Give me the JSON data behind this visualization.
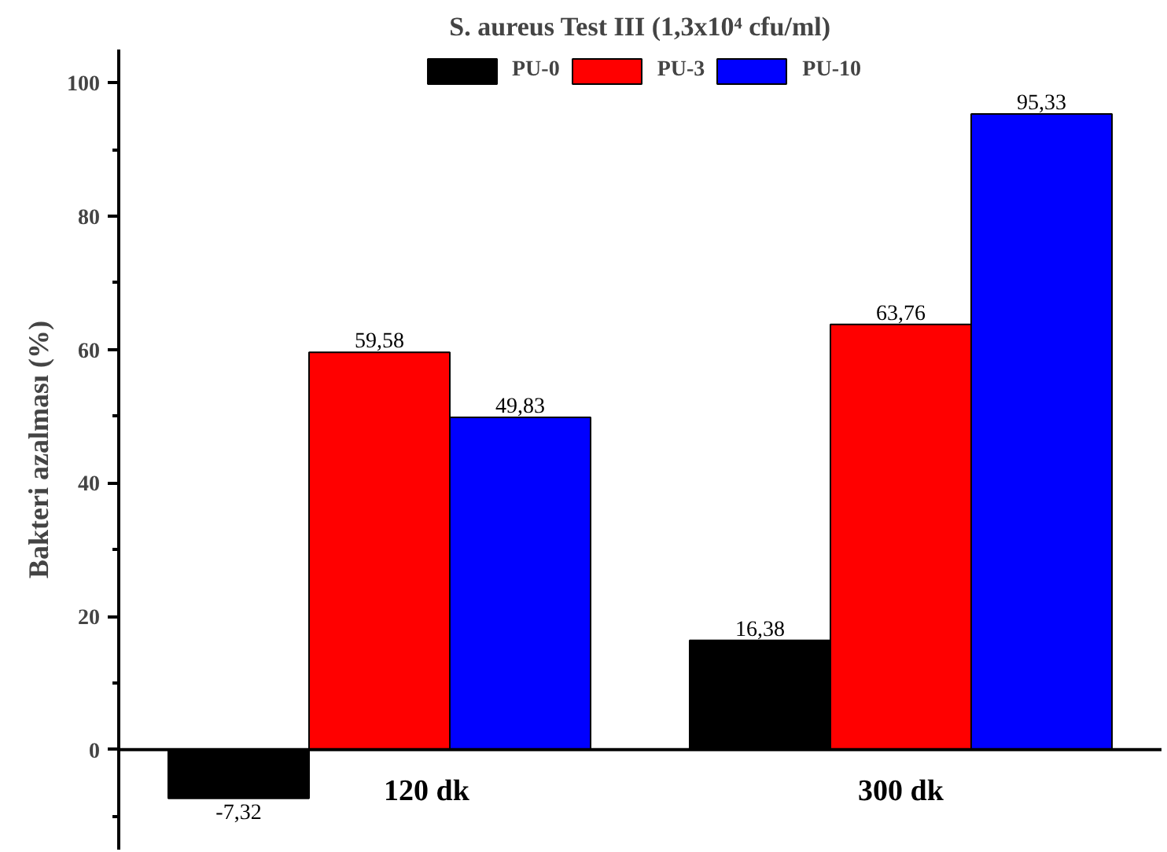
{
  "chart_data": {
    "type": "bar",
    "title": "S. aureus Test III (1,3x10⁴ cfu/ml)",
    "ylabel": "Bakteri azalması (%)",
    "categories": [
      "120 dk",
      "300 dk"
    ],
    "series": [
      {
        "name": "PU-0",
        "color": "#000000",
        "values": [
          -7.32,
          16.38
        ],
        "value_labels": [
          "-7,32",
          "16,38"
        ]
      },
      {
        "name": "PU-3",
        "color": "#ff0000",
        "values": [
          59.58,
          63.76
        ],
        "value_labels": [
          "59,58",
          "63,76"
        ]
      },
      {
        "name": "PU-10",
        "color": "#0000ff",
        "values": [
          49.83,
          95.33
        ],
        "value_labels": [
          "49,83",
          "95,33"
        ]
      }
    ],
    "ylim": [
      -15,
      105
    ],
    "yticks": [
      0,
      20,
      40,
      60,
      80,
      100
    ],
    "grid": false,
    "legend": "top"
  }
}
